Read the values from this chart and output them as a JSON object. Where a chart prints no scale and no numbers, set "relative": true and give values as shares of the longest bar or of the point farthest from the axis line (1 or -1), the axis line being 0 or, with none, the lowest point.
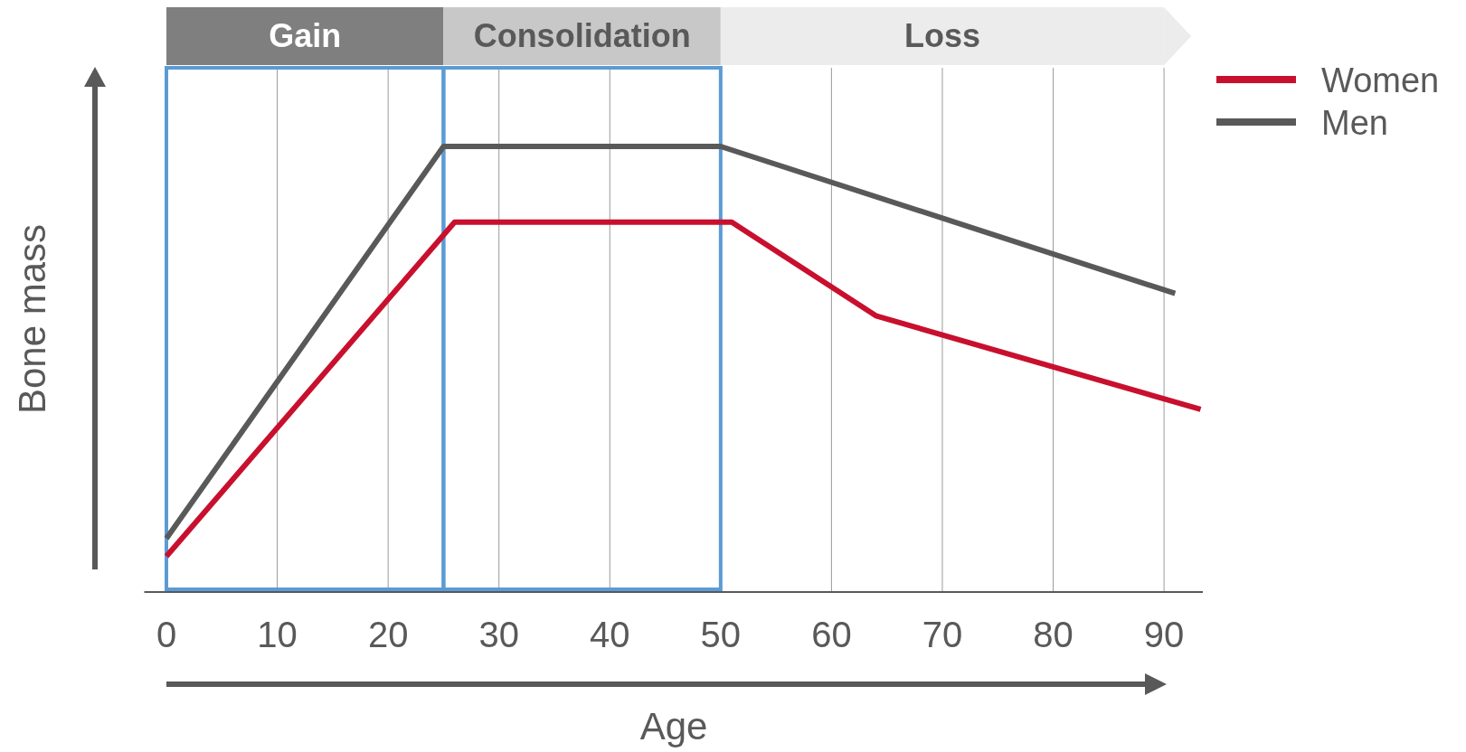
{
  "chart_data": {
    "type": "line",
    "relative": true,
    "xlabel": "Age",
    "ylabel": "Bone mass",
    "xlim": [
      -2,
      93.5
    ],
    "xticks": [
      0,
      10,
      20,
      30,
      40,
      50,
      60,
      70,
      80,
      90
    ],
    "grid": "x",
    "legend": "top right",
    "bands": [
      {
        "axis": "x",
        "from": 0,
        "to": 25,
        "label": "Gain",
        "color": "#7f7f7f"
      },
      {
        "axis": "x",
        "from": 25,
        "to": 50,
        "label": "Consolidation",
        "color": "#c8c8c8"
      },
      {
        "axis": "x",
        "from": 50,
        "to": 90,
        "label": "Loss",
        "color": "#ececec"
      }
    ],
    "series": [
      {
        "name": "Women",
        "color": "#c8102e",
        "x": [
          0,
          26,
          51,
          64,
          93.3
        ],
        "values": [
          0.08,
          0.83,
          0.83,
          0.62,
          0.41
        ]
      },
      {
        "name": "Men",
        "color": "#595959",
        "x": [
          0,
          25,
          50,
          91
        ],
        "values": [
          0.12,
          1,
          1,
          0.67
        ]
      }
    ]
  }
}
